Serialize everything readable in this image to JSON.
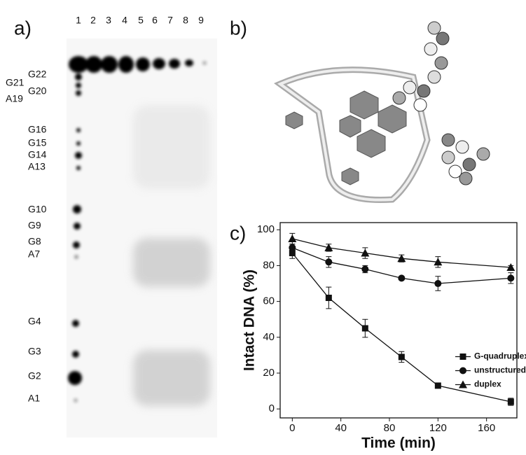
{
  "panel_labels": [
    "a)",
    "b)",
    "c)"
  ],
  "gel": {
    "lanes": [
      "1",
      "2",
      "3",
      "4",
      "5",
      "6",
      "7",
      "8",
      "9"
    ],
    "bands": [
      "G22",
      "G21",
      "G20",
      "A19",
      "G16",
      "G15",
      "G14",
      "A13",
      "G10",
      "G9",
      "G8",
      "A7",
      "G4",
      "G3",
      "G2",
      "A1"
    ]
  },
  "chart_data": {
    "type": "line",
    "xlabel": "Time (min)",
    "ylabel": "Intact DNA (%)",
    "xlim": [
      -10,
      185
    ],
    "ylim": [
      -5,
      104
    ],
    "xticks": [
      0,
      40,
      80,
      120,
      160
    ],
    "yticks": [
      0,
      20,
      40,
      60,
      80,
      100
    ],
    "x": [
      0,
      30,
      60,
      90,
      120,
      180
    ],
    "legend": "right",
    "series": [
      {
        "name": "G-quadruplex",
        "color": "#111111",
        "marker": "square",
        "values": [
          87,
          62,
          45,
          29,
          13,
          4
        ],
        "errors": [
          3,
          6,
          5,
          3,
          1,
          2
        ]
      },
      {
        "name": "unstructured",
        "color": "#111111",
        "marker": "circle",
        "values": [
          90,
          82,
          78,
          73,
          70,
          73
        ],
        "errors": [
          2,
          3,
          2,
          1,
          4,
          3
        ]
      },
      {
        "name": "duplex",
        "color": "#111111",
        "marker": "triangle",
        "values": [
          95,
          90,
          87,
          84,
          82,
          79
        ],
        "errors": [
          3,
          2,
          3,
          2,
          3,
          1
        ]
      }
    ]
  }
}
